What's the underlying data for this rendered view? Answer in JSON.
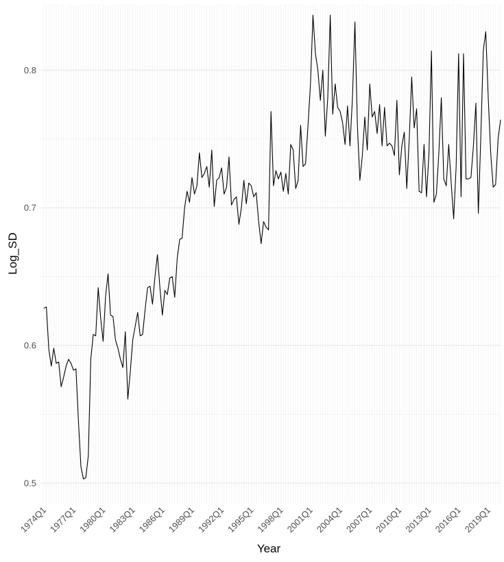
{
  "chart_data": {
    "type": "line",
    "title": "",
    "xlabel": "Year",
    "ylabel": "Log_SD",
    "x_tick_labels": [
      "1974Q1",
      "1977Q1",
      "1980Q1",
      "1983Q1",
      "1986Q1",
      "1989Q1",
      "1992Q1",
      "1995Q1",
      "1998Q1",
      "2001Q1",
      "2004Q1",
      "2007Q1",
      "2010Q1",
      "2013Q1",
      "2016Q1",
      "2019Q1"
    ],
    "y_ticks": [
      0.5,
      0.6,
      0.7,
      0.8
    ],
    "y_tick_labels": [
      "0.5",
      "0.6",
      "0.7",
      "0.8"
    ],
    "ylim": [
      0.485,
      0.848
    ],
    "grid": true,
    "series_color": "#000000",
    "start_year": 1974,
    "start_quarter": 1,
    "values": [
      0.627,
      0.628,
      0.597,
      0.585,
      0.598,
      0.587,
      0.588,
      0.57,
      0.577,
      0.585,
      0.59,
      0.587,
      0.582,
      0.583,
      0.545,
      0.512,
      0.503,
      0.504,
      0.52,
      0.59,
      0.608,
      0.607,
      0.642,
      0.62,
      0.603,
      0.636,
      0.652,
      0.622,
      0.621,
      0.604,
      0.598,
      0.59,
      0.584,
      0.61,
      0.561,
      0.581,
      0.604,
      0.614,
      0.624,
      0.607,
      0.608,
      0.626,
      0.642,
      0.643,
      0.63,
      0.65,
      0.666,
      0.642,
      0.622,
      0.64,
      0.637,
      0.649,
      0.65,
      0.635,
      0.663,
      0.677,
      0.678,
      0.7,
      0.712,
      0.704,
      0.722,
      0.71,
      0.716,
      0.74,
      0.722,
      0.725,
      0.73,
      0.715,
      0.742,
      0.701,
      0.72,
      0.722,
      0.729,
      0.71,
      0.715,
      0.737,
      0.702,
      0.706,
      0.708,
      0.688,
      0.7,
      0.72,
      0.703,
      0.718,
      0.716,
      0.708,
      0.711,
      0.69,
      0.674,
      0.69,
      0.686,
      0.684,
      0.77,
      0.716,
      0.727,
      0.721,
      0.726,
      0.712,
      0.725,
      0.71,
      0.746,
      0.742,
      0.714,
      0.72,
      0.76,
      0.73,
      0.732,
      0.76,
      0.79,
      0.84,
      0.812,
      0.8,
      0.778,
      0.8,
      0.752,
      0.78,
      0.84,
      0.768,
      0.79,
      0.773,
      0.77,
      0.762,
      0.746,
      0.774,
      0.745,
      0.78,
      0.835,
      0.76,
      0.72,
      0.738,
      0.766,
      0.742,
      0.79,
      0.766,
      0.77,
      0.754,
      0.775,
      0.745,
      0.773,
      0.745,
      0.747,
      0.745,
      0.738,
      0.778,
      0.724,
      0.745,
      0.755,
      0.714,
      0.75,
      0.795,
      0.758,
      0.772,
      0.712,
      0.711,
      0.746,
      0.708,
      0.74,
      0.814,
      0.704,
      0.71,
      0.74,
      0.78,
      0.721,
      0.716,
      0.746,
      0.718,
      0.692,
      0.73,
      0.812,
      0.708,
      0.812,
      0.721,
      0.721,
      0.722,
      0.745,
      0.776,
      0.696,
      0.752,
      0.814,
      0.828,
      0.78,
      0.74,
      0.715,
      0.717,
      0.75,
      0.764
    ]
  }
}
